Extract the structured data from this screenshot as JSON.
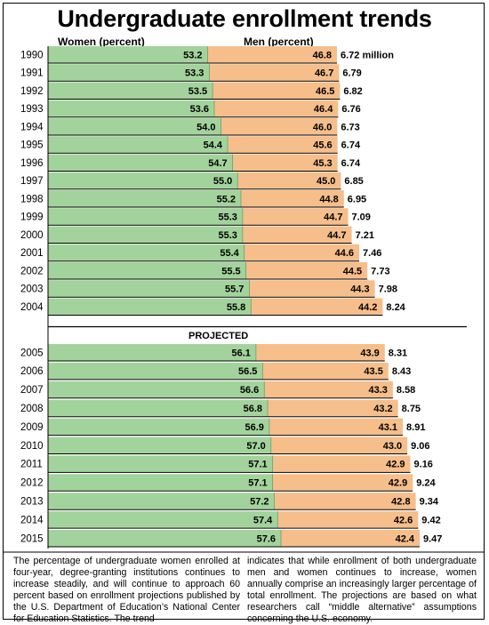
{
  "title": "Undergraduate enrollment trends",
  "headers": {
    "women": "Women (percent)",
    "men": "Men (percent)"
  },
  "colors": {
    "women": "#a3d39c",
    "men": "#f6be8a",
    "divider": "#000000"
  },
  "chart_data": {
    "type": "bar",
    "stacked": true,
    "orientation": "horizontal",
    "title": "Undergraduate enrollment trends",
    "series": [
      {
        "name": "Women (percent)",
        "color": "#a3d39c"
      },
      {
        "name": "Men (percent)",
        "color": "#f6be8a"
      }
    ],
    "section_label": "PROJECTED",
    "total_unit": "million",
    "rows": [
      {
        "year": "1990",
        "women": "53.2",
        "men": "46.8",
        "total": "6.72",
        "projected": false
      },
      {
        "year": "1991",
        "women": "53.3",
        "men": "46.7",
        "total": "6.79",
        "projected": false
      },
      {
        "year": "1992",
        "women": "53.5",
        "men": "46.5",
        "total": "6.82",
        "projected": false
      },
      {
        "year": "1993",
        "women": "53.6",
        "men": "46.4",
        "total": "6.76",
        "projected": false
      },
      {
        "year": "1994",
        "women": "54.0",
        "men": "46.0",
        "total": "6.73",
        "projected": false
      },
      {
        "year": "1995",
        "women": "54.4",
        "men": "45.6",
        "total": "6.74",
        "projected": false
      },
      {
        "year": "1996",
        "women": "54.7",
        "men": "45.3",
        "total": "6.74",
        "projected": false
      },
      {
        "year": "1997",
        "women": "55.0",
        "men": "45.0",
        "total": "6.85",
        "projected": false
      },
      {
        "year": "1998",
        "women": "55.2",
        "men": "44.8",
        "total": "6.95",
        "projected": false
      },
      {
        "year": "1999",
        "women": "55.3",
        "men": "44.7",
        "total": "7.09",
        "projected": false
      },
      {
        "year": "2000",
        "women": "55.3",
        "men": "44.7",
        "total": "7.21",
        "projected": false
      },
      {
        "year": "2001",
        "women": "55.4",
        "men": "44.6",
        "total": "7.46",
        "projected": false
      },
      {
        "year": "2002",
        "women": "55.5",
        "men": "44.5",
        "total": "7.73",
        "projected": false
      },
      {
        "year": "2003",
        "women": "55.7",
        "men": "44.3",
        "total": "7.98",
        "projected": false
      },
      {
        "year": "2004",
        "women": "55.8",
        "men": "44.2",
        "total": "8.24",
        "projected": false
      },
      {
        "year": "2005",
        "women": "56.1",
        "men": "43.9",
        "total": "8.31",
        "projected": true
      },
      {
        "year": "2006",
        "women": "56.5",
        "men": "43.5",
        "total": "8.43",
        "projected": true
      },
      {
        "year": "2007",
        "women": "56.6",
        "men": "43.3",
        "total": "8.58",
        "projected": true
      },
      {
        "year": "2008",
        "women": "56.8",
        "men": "43.2",
        "total": "8.75",
        "projected": true
      },
      {
        "year": "2009",
        "women": "56.9",
        "men": "43.1",
        "total": "8.91",
        "projected": true
      },
      {
        "year": "2010",
        "women": "57.0",
        "men": "43.0",
        "total": "9.06",
        "projected": true
      },
      {
        "year": "2011",
        "women": "57.1",
        "men": "42.9",
        "total": "9.16",
        "projected": true
      },
      {
        "year": "2012",
        "women": "57.1",
        "men": "42.9",
        "total": "9.24",
        "projected": true
      },
      {
        "year": "2013",
        "women": "57.2",
        "men": "42.8",
        "total": "9.34",
        "projected": true
      },
      {
        "year": "2014",
        "women": "57.4",
        "men": "42.6",
        "total": "9.42",
        "projected": true
      },
      {
        "year": "2015",
        "women": "57.6",
        "men": "42.4",
        "total": "9.47",
        "projected": true
      }
    ]
  },
  "footer": {
    "left": "The percentage of undergraduate women enrolled at four-year, degree-granting institutions continues to increase steadily, and will continue to approach 60 percent based on enrollment projections published by the U.S. Department of Education’s National Center for Education Statistics. The trend",
    "right": "indicates that while enrollment of both undergraduate men and women continues to increase, women annually comprise an increasingly larger percentage of total enrollment. The projections are based on what researchers call “middle alternative” assumptions concerning the U.S. economy."
  }
}
